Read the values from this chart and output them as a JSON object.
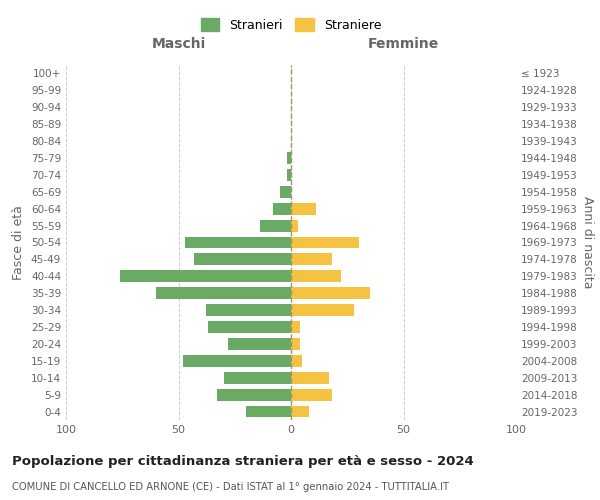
{
  "age_groups": [
    "0-4",
    "5-9",
    "10-14",
    "15-19",
    "20-24",
    "25-29",
    "30-34",
    "35-39",
    "40-44",
    "45-49",
    "50-54",
    "55-59",
    "60-64",
    "65-69",
    "70-74",
    "75-79",
    "80-84",
    "85-89",
    "90-94",
    "95-99",
    "100+"
  ],
  "birth_years": [
    "2019-2023",
    "2014-2018",
    "2009-2013",
    "2004-2008",
    "1999-2003",
    "1994-1998",
    "1989-1993",
    "1984-1988",
    "1979-1983",
    "1974-1978",
    "1969-1973",
    "1964-1968",
    "1959-1963",
    "1954-1958",
    "1949-1953",
    "1944-1948",
    "1939-1943",
    "1934-1938",
    "1929-1933",
    "1924-1928",
    "≤ 1923"
  ],
  "maschi": [
    20,
    33,
    30,
    48,
    28,
    37,
    38,
    60,
    76,
    43,
    47,
    14,
    8,
    5,
    2,
    2,
    0,
    0,
    0,
    0,
    0
  ],
  "femmine": [
    8,
    18,
    17,
    5,
    4,
    4,
    28,
    35,
    22,
    18,
    30,
    3,
    11,
    0,
    0,
    0,
    0,
    0,
    0,
    0,
    0
  ],
  "maschi_color": "#6aaa64",
  "femmine_color": "#f5c242",
  "title": "Popolazione per cittadinanza straniera per età e sesso - 2024",
  "subtitle": "COMUNE DI CANCELLO ED ARNONE (CE) - Dati ISTAT al 1° gennaio 2024 - TUTTITALIA.IT",
  "xlabel_left": "Maschi",
  "xlabel_right": "Femmine",
  "ylabel_left": "Fasce di età",
  "ylabel_right": "Anni di nascita",
  "xlim": 100,
  "legend_stranieri": "Stranieri",
  "legend_straniere": "Straniere",
  "bg_color": "#ffffff",
  "grid_color": "#cccccc",
  "text_color": "#666666"
}
